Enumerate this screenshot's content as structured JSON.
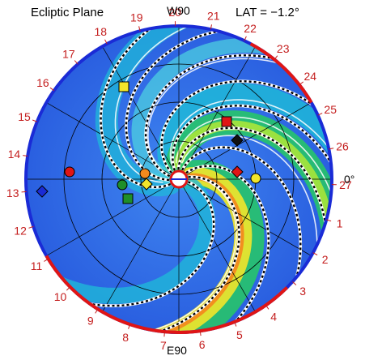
{
  "header": {
    "plane_label": "Ecliptic Plane",
    "top_label": "W90",
    "lat_label": "LAT = −1.2°"
  },
  "axis_labels": {
    "bottom": "E90",
    "right": "0°"
  },
  "carrington_numbers": [
    "27",
    "1",
    "2",
    "3",
    "4",
    "5",
    "6",
    "7",
    "8",
    "9",
    "10",
    "11",
    "12",
    "13",
    "14",
    "15",
    "16",
    "17",
    "18",
    "19",
    "20",
    "21",
    "22",
    "23",
    "24",
    "25",
    "26"
  ],
  "colors": {
    "rim_blue": "#1a2bd6",
    "rim_red": "#e01515",
    "number_red": "#c41e1e",
    "background_field": "#2f6fe8",
    "hss_green": "#27c46a",
    "hss_yellow": "#f2e62a",
    "hss_orange": "#f28a1e"
  },
  "markers": [
    {
      "name": "earth-marker",
      "shape": "circle",
      "color": "#f2e62a"
    },
    {
      "name": "stereo-a-marker",
      "shape": "diamond",
      "color": "#e01515"
    },
    {
      "name": "stereo-b-marker",
      "shape": "diamond",
      "color": "#1a2bd6"
    },
    {
      "name": "mars-marker",
      "shape": "square",
      "color": "#e01515"
    },
    {
      "name": "mercury-marker",
      "shape": "circle",
      "color": "#e01515"
    },
    {
      "name": "venus-marker",
      "shape": "circle",
      "color": "#f28a1e"
    },
    {
      "name": "spacecraft-black-marker",
      "shape": "diamond",
      "color": "#111111"
    },
    {
      "name": "spacecraft-yellow-diamond-marker",
      "shape": "diamond",
      "color": "#f2e62a"
    },
    {
      "name": "spacecraft-green-circle-marker",
      "shape": "circle",
      "color": "#1f8f2a"
    },
    {
      "name": "spacecraft-green-square-marker",
      "shape": "square",
      "color": "#1f8f2a"
    },
    {
      "name": "jupiter-marker",
      "shape": "square",
      "color": "#f2e62a"
    }
  ]
}
